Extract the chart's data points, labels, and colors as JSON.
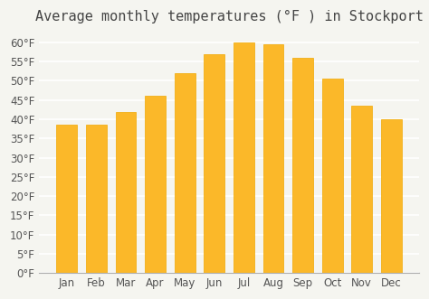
{
  "title": "Average monthly temperatures (°F ) in Stockport",
  "months": [
    "Jan",
    "Feb",
    "Mar",
    "Apr",
    "May",
    "Jun",
    "Jul",
    "Aug",
    "Sep",
    "Oct",
    "Nov",
    "Dec"
  ],
  "values": [
    38.5,
    38.5,
    42.0,
    46.0,
    52.0,
    57.0,
    60.0,
    59.5,
    56.0,
    50.5,
    43.5,
    40.0
  ],
  "bar_color": "#FBB829",
  "bar_edge_color": "#F0A800",
  "background_color": "#f5f5f0",
  "grid_color": "#ffffff",
  "ylim": [
    0,
    63
  ],
  "yticks": [
    0,
    5,
    10,
    15,
    20,
    25,
    30,
    35,
    40,
    45,
    50,
    55,
    60
  ],
  "title_fontsize": 11,
  "tick_fontsize": 8.5,
  "title_color": "#444444",
  "tick_color": "#555555"
}
